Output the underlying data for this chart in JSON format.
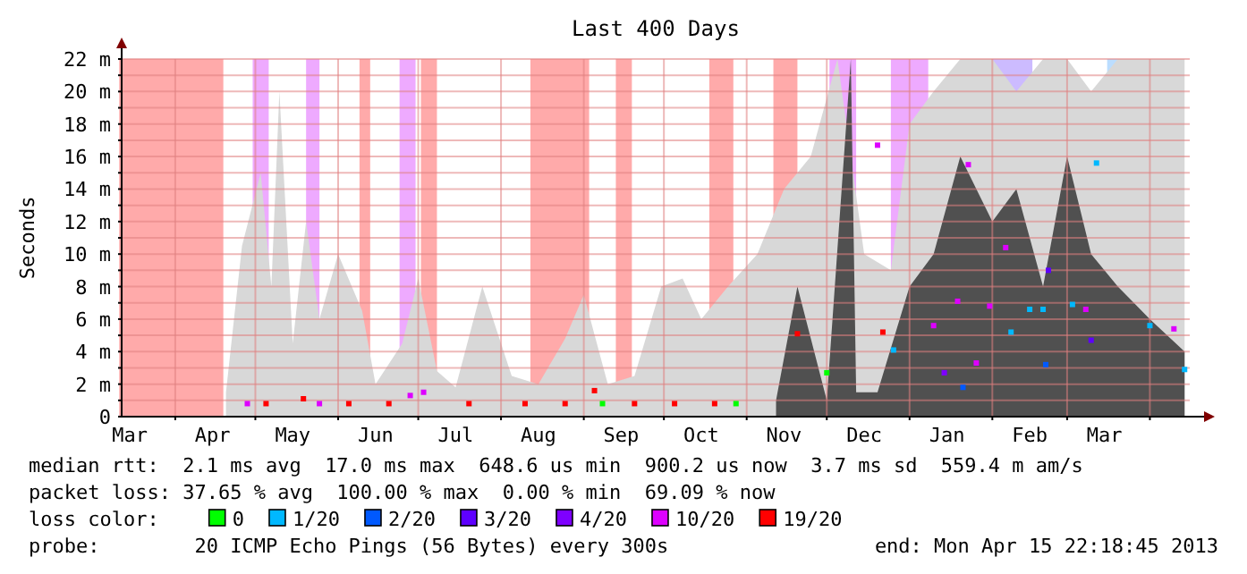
{
  "chart_data": {
    "type": "scatter",
    "title": "Last 400 Days",
    "ylabel": "Seconds",
    "legend_title": "loss color:",
    "legend": "bottom",
    "marker": "square",
    "grid": true,
    "xlim": [
      "2012-03-11T22:18",
      "2013-04-15T22:18"
    ],
    "xticks": [
      {
        "value": "2012-04-01",
        "label": null
      },
      {
        "value": "2012-05-01",
        "label": null
      },
      {
        "value": "2012-06-01",
        "label": null
      },
      {
        "value": "2012-07-01",
        "label": null
      },
      {
        "value": "2012-08-01",
        "label": null
      },
      {
        "value": "2012-09-01",
        "label": null
      },
      {
        "value": "2012-10-01",
        "label": null
      },
      {
        "value": "2012-11-01",
        "label": null
      },
      {
        "value": "2012-12-01",
        "label": null
      },
      {
        "value": "2013-01-01",
        "label": null
      },
      {
        "value": "2013-02-01",
        "label": null
      },
      {
        "value": "2013-03-01",
        "label": null
      },
      {
        "value": "2013-04-01",
        "label": null
      },
      {
        "value": "2012-03-15",
        "label": "Mar"
      },
      {
        "value": "2012-04-15",
        "label": "Apr"
      },
      {
        "value": "2012-05-15",
        "label": "May"
      },
      {
        "value": "2012-06-15",
        "label": "Jun"
      },
      {
        "value": "2012-07-15",
        "label": "Jul"
      },
      {
        "value": "2012-08-15",
        "label": "Aug"
      },
      {
        "value": "2012-09-15",
        "label": "Sep"
      },
      {
        "value": "2012-10-15",
        "label": "Oct"
      },
      {
        "value": "2012-11-15",
        "label": "Nov"
      },
      {
        "value": "2012-12-15",
        "label": "Dec"
      },
      {
        "value": "2013-01-15",
        "label": "Jan"
      },
      {
        "value": "2013-02-15",
        "label": "Feb"
      },
      {
        "value": "2013-03-15",
        "label": "Mar"
      }
    ],
    "ylim": [
      0,
      22
    ],
    "yticks": [
      0,
      {
        "value": 1,
        "label": null
      },
      {
        "value": 2,
        "label": "2 m"
      },
      {
        "value": 3,
        "label": null
      },
      {
        "value": 4,
        "label": "4 m"
      },
      {
        "value": 5,
        "label": null
      },
      {
        "value": 6,
        "label": "6 m"
      },
      {
        "value": 7,
        "label": null
      },
      {
        "value": 8,
        "label": "8 m"
      },
      {
        "value": 9,
        "label": null
      },
      {
        "value": 10,
        "label": "10 m"
      },
      {
        "value": 11,
        "label": null
      },
      {
        "value": 12,
        "label": "12 m"
      },
      {
        "value": 13,
        "label": null
      },
      {
        "value": 14,
        "label": "14 m"
      },
      {
        "value": 15,
        "label": null
      },
      {
        "value": 16,
        "label": "16 m"
      },
      {
        "value": 17,
        "label": null
      },
      {
        "value": 18,
        "label": "18 m"
      },
      {
        "value": 19,
        "label": null
      },
      {
        "value": 20,
        "label": "20 m"
      },
      {
        "value": 21,
        "label": null
      },
      {
        "value": 22,
        "label": "22 m"
      }
    ],
    "bands": [
      {
        "axis": "x",
        "from": "2012-03-11",
        "to": "2012-04-19",
        "color": "#ffaaaa"
      },
      {
        "axis": "x",
        "from": "2012-04-30",
        "to": "2012-05-06",
        "color": "#eeaaff"
      },
      {
        "axis": "x",
        "from": "2012-05-20",
        "to": "2012-05-25",
        "color": "#eeaaff"
      },
      {
        "axis": "x",
        "from": "2012-06-09",
        "to": "2012-06-13",
        "color": "#ffaaaa"
      },
      {
        "axis": "x",
        "from": "2012-06-24",
        "to": "2012-06-30",
        "color": "#eeaaff"
      },
      {
        "axis": "x",
        "from": "2012-07-02",
        "to": "2012-07-08",
        "color": "#ffaaaa"
      },
      {
        "axis": "x",
        "from": "2012-08-12",
        "to": "2012-09-03",
        "color": "#ffaaaa"
      },
      {
        "axis": "x",
        "from": "2012-09-13",
        "to": "2012-09-19",
        "color": "#ffaaaa"
      },
      {
        "axis": "x",
        "from": "2012-10-18",
        "to": "2012-10-27",
        "color": "#ffaaaa"
      },
      {
        "axis": "x",
        "from": "2012-11-11",
        "to": "2012-11-20",
        "color": "#ffaaaa"
      },
      {
        "axis": "x",
        "from": "2012-12-02",
        "to": "2012-12-12",
        "color": "#eeaaff"
      },
      {
        "axis": "x",
        "from": "2012-12-25",
        "to": "2013-01-08",
        "color": "#eeaaff"
      },
      {
        "axis": "x",
        "from": "2013-01-31",
        "to": "2013-02-16",
        "color": "#ccbbff"
      },
      {
        "axis": "x",
        "from": "2013-03-16",
        "to": "2013-03-29",
        "color": "#bbddff"
      }
    ],
    "series": [
      {
        "type": "area",
        "marker": "none",
        "color": "#d8d8d8",
        "x": [
          "2012-04-20",
          "2012-04-26",
          "2012-05-03",
          "2012-05-07",
          "2012-05-10",
          "2012-05-15",
          "2012-05-20",
          "2012-05-25",
          "2012-06-01",
          "2012-06-10",
          "2012-06-15",
          "2012-06-25",
          "2012-07-01",
          "2012-07-08",
          "2012-07-15",
          "2012-07-25",
          "2012-08-05",
          "2012-08-15",
          "2012-08-25",
          "2012-09-01",
          "2012-09-10",
          "2012-09-20",
          "2012-09-30",
          "2012-10-08",
          "2012-10-15",
          "2012-10-25",
          "2012-11-05",
          "2012-11-15",
          "2012-11-25",
          "2012-12-05",
          "2012-12-15",
          "2012-12-25",
          "2013-01-01",
          "2013-01-10",
          "2013-01-20",
          "2013-02-01",
          "2013-02-10",
          "2013-02-20",
          "2013-03-01",
          "2013-03-10",
          "2013-03-20",
          "2013-04-01",
          "2013-04-14"
        ],
        "values": [
          1.5,
          10.5,
          15,
          8,
          20,
          4.5,
          12,
          6,
          10,
          6.5,
          2,
          4.5,
          8.5,
          2.8,
          1.8,
          8,
          2.5,
          2,
          4.8,
          7.5,
          2,
          2.5,
          8,
          8.5,
          6,
          8,
          10,
          14,
          16,
          22,
          10,
          9,
          18,
          20,
          22,
          22,
          20,
          22,
          22,
          20,
          22,
          22,
          22
        ]
      },
      {
        "type": "area",
        "marker": "none",
        "color": "#505050",
        "x": [
          "2012-11-12",
          "2012-11-20",
          "2012-12-01",
          "2012-12-10",
          "2012-12-12",
          "2012-12-20",
          "2013-01-01",
          "2013-01-10",
          "2013-01-20",
          "2013-02-01",
          "2013-02-10",
          "2013-02-20",
          "2013-03-01",
          "2013-03-10",
          "2013-03-20",
          "2013-04-01",
          "2013-04-14"
        ],
        "values": [
          1,
          8,
          1,
          22,
          1.5,
          1.5,
          8,
          10,
          16,
          12,
          14,
          8,
          16,
          10,
          8,
          6,
          4
        ]
      },
      {
        "name": "0",
        "color": "#00ff00",
        "x": [
          "2012-09-08",
          "2012-10-28",
          "2012-12-01"
        ],
        "values": [
          0.8,
          0.8,
          2.7
        ]
      },
      {
        "name": "1/20",
        "color": "#00b8ff",
        "x": [
          "2012-12-26",
          "2013-02-08",
          "2013-02-15",
          "2013-02-20",
          "2013-03-03",
          "2013-03-12",
          "2013-04-01",
          "2013-04-14"
        ],
        "values": [
          4.1,
          5.2,
          6.6,
          6.6,
          6.9,
          15.6,
          5.6,
          2.9
        ]
      },
      {
        "name": "2/20",
        "color": "#0059ff",
        "x": [
          "2013-01-21",
          "2013-02-21"
        ],
        "values": [
          1.8,
          3.2
        ]
      },
      {
        "name": "3/20",
        "color": "#5e00ff",
        "x": [
          "2013-02-22",
          "2013-03-10"
        ],
        "values": [
          9,
          4.7
        ]
      },
      {
        "name": "4/20",
        "color": "#7e00ff",
        "x": [
          "2013-01-14"
        ],
        "values": [
          2.7
        ]
      },
      {
        "name": "10/20",
        "color": "#dd00ff",
        "x": [
          "2012-04-28",
          "2012-05-25",
          "2012-06-28",
          "2012-07-03",
          "2012-12-20",
          "2013-01-10",
          "2013-01-19",
          "2013-01-23",
          "2013-01-26",
          "2013-01-31",
          "2013-02-06",
          "2013-03-08",
          "2013-04-10"
        ],
        "values": [
          0.8,
          0.8,
          1.3,
          1.5,
          16.7,
          5.6,
          7.1,
          15.5,
          3.3,
          6.8,
          10.4,
          6.6,
          5.4
        ]
      },
      {
        "name": "19/20",
        "color": "#ff0000",
        "x": [
          "2012-05-05",
          "2012-05-19",
          "2012-06-05",
          "2012-06-20",
          "2012-07-20",
          "2012-08-10",
          "2012-08-25",
          "2012-09-05",
          "2012-09-20",
          "2012-10-05",
          "2012-10-20",
          "2012-11-20",
          "2012-12-22"
        ],
        "values": [
          0.8,
          1.1,
          0.8,
          0.8,
          0.8,
          0.8,
          0.8,
          1.6,
          0.8,
          0.8,
          0.8,
          5.1,
          5.2
        ]
      }
    ],
    "annotations": [
      "median rtt:  2.1 ms avg  17.0 ms max  648.6 us min  900.2 us now  3.7 ms sd  559.4 m am/s",
      "packet loss: 37.65 % avg  100.00 % max  0.00 % min  69.09 % now",
      "probe:        20 ICMP Echo Pings (56 Bytes) every 300s",
      "end: Mon Apr 15 22:18:45 2013"
    ]
  }
}
